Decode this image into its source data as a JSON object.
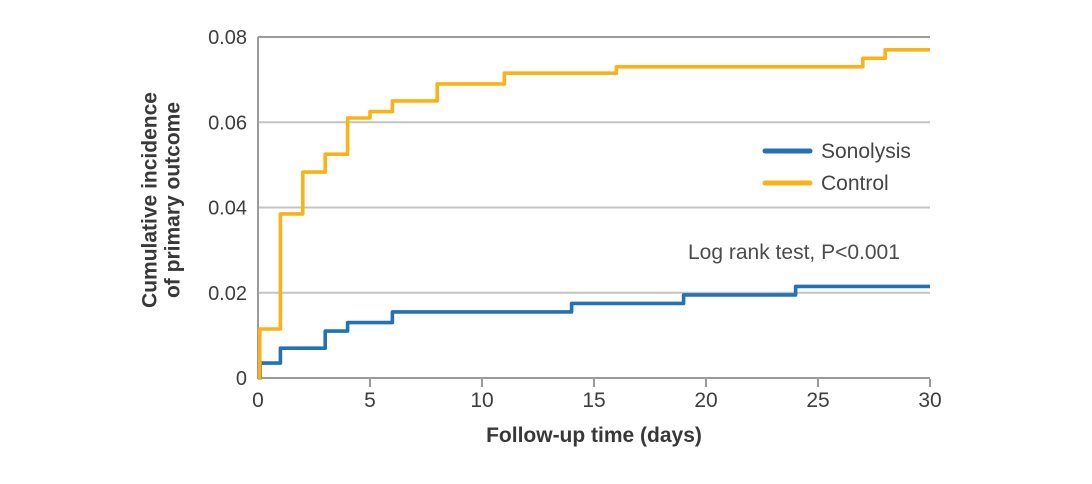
{
  "chart_data": {
    "type": "line",
    "line_style": "step",
    "title": "",
    "xlabel": "Follow-up time (days)",
    "ylabel": "Cumulative incidence of primary outcome",
    "ylabel_lines": [
      "Cumulative incidence",
      "of primary outcome"
    ],
    "annotation": "Log rank test, P<0.001",
    "xlim": [
      0,
      30
    ],
    "ylim": [
      0,
      0.08
    ],
    "x_ticks": [
      0,
      5,
      10,
      15,
      20,
      25,
      30
    ],
    "x_tick_labels": [
      "0",
      "5",
      "10",
      "15",
      "20",
      "25",
      "30"
    ],
    "y_ticks": [
      0,
      0.02,
      0.04,
      0.06,
      0.08
    ],
    "y_tick_labels": [
      "0",
      "0.02",
      "0.04",
      "0.06",
      "0.08"
    ],
    "grid": "horizontal-only",
    "legend_position": "inside-right",
    "series": [
      {
        "name": "Sonolysis",
        "color": "#2372b5",
        "start": [
          0,
          0
        ],
        "end_x": 30,
        "steps": [
          [
            0.1,
            0.0035
          ],
          [
            1,
            0.007
          ],
          [
            3,
            0.011
          ],
          [
            4,
            0.013
          ],
          [
            6,
            0.0155
          ],
          [
            14,
            0.0175
          ],
          [
            19,
            0.0195
          ],
          [
            24,
            0.0215
          ]
        ]
      },
      {
        "name": "Control",
        "color": "#fbb216",
        "start": [
          0,
          0
        ],
        "end_x": 30,
        "steps": [
          [
            0.08,
            0.0115
          ],
          [
            1,
            0.0385
          ],
          [
            2,
            0.0483
          ],
          [
            3,
            0.0525
          ],
          [
            4,
            0.061
          ],
          [
            5,
            0.0625
          ],
          [
            6,
            0.065
          ],
          [
            8,
            0.069
          ],
          [
            11,
            0.0715
          ],
          [
            16,
            0.073
          ],
          [
            27,
            0.075
          ],
          [
            28,
            0.077
          ]
        ]
      }
    ],
    "colors": {
      "sonolysis": "#2372b5",
      "control": "#fbb216",
      "grid": "#c4c4c4",
      "axis": "#9b9b9b",
      "tick_text": "#3d3d3d",
      "title_text": "#383838",
      "annotation_text": "#4c4c4c",
      "background": "#ffffff"
    }
  }
}
